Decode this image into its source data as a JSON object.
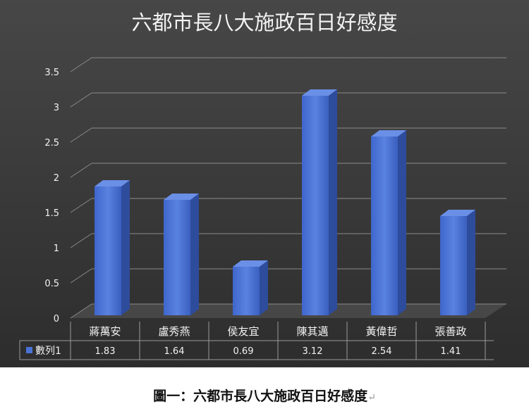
{
  "caption": {
    "text": "圖一：六都市長八大施政百日好感度",
    "return_mark": "↵"
  },
  "chart_data": {
    "type": "bar",
    "title": "六都市長八大施政百日好感度",
    "categories": [
      "蔣萬安",
      "盧秀燕",
      "侯友宜",
      "陳其邁",
      "黃偉哲",
      "張善政"
    ],
    "series": [
      {
        "name": "數列1",
        "values": [
          1.83,
          1.64,
          0.69,
          3.12,
          2.54,
          1.41
        ]
      }
    ],
    "ylim": [
      0,
      3.5
    ],
    "yticks": [
      "0",
      "0.5",
      "1",
      "1.5",
      "2",
      "2.5",
      "3",
      "3.5"
    ],
    "data_table": true,
    "grid": true,
    "style": "3d-column",
    "colors": {
      "background": "#3a3a3a",
      "bar_front": "#4a72d6",
      "bar_side": "#2e4c9c",
      "bar_top": "#6a8fe6",
      "grid": "#8a8a8a",
      "text": "#f2f2f2"
    }
  }
}
